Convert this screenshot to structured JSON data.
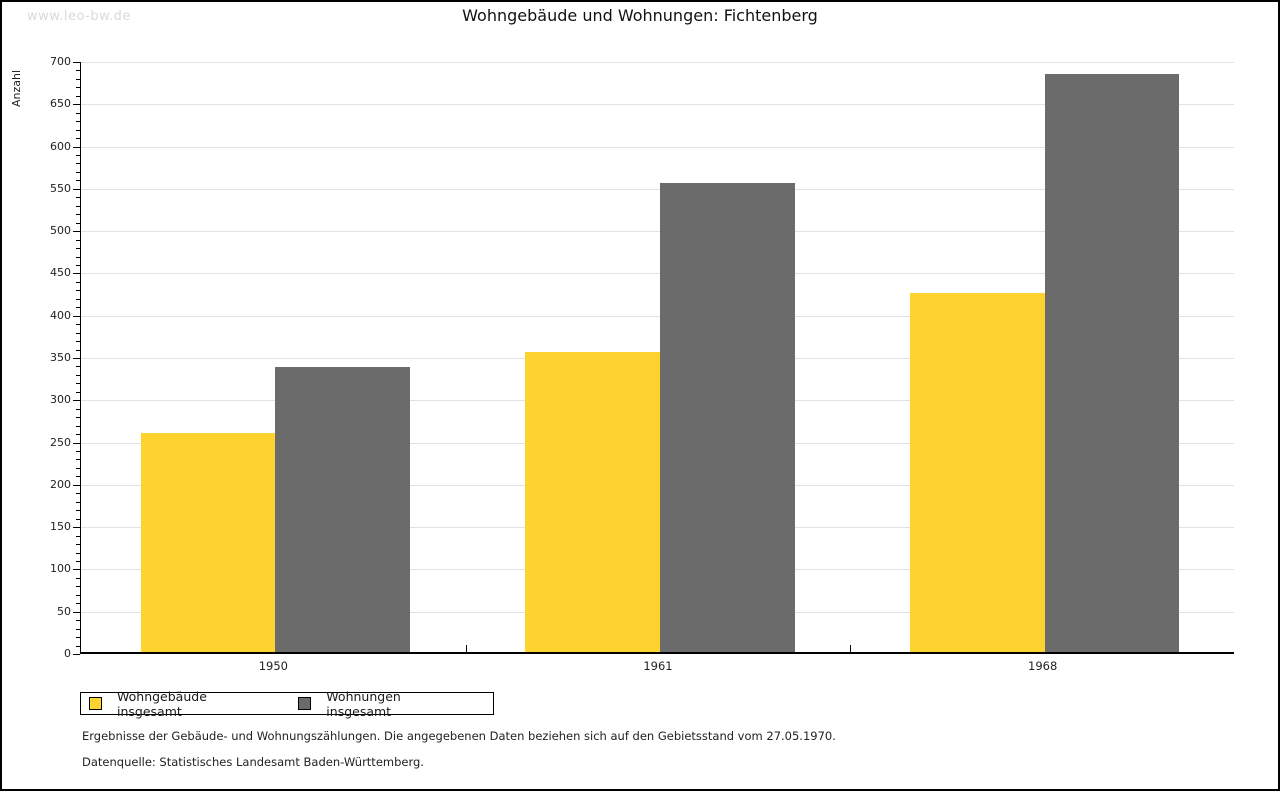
{
  "watermark": "www.leo-bw.de",
  "title": "Wohngebäude und Wohnungen: Fichtenberg",
  "footer": {
    "note": "Ergebnisse der Gebäude- und Wohnungszählungen. Die angegebenen Daten beziehen sich auf den Gebietsstand vom 27.05.1970.",
    "source": "Datenquelle: Statistisches Landesamt Baden-Württemberg."
  },
  "colors": {
    "bar_yellow": "#fcd32f",
    "bar_gray": "#6b6b6b",
    "gridline": "#e2e2e2",
    "axis": "#000000",
    "watermark": "#d9d9d9"
  },
  "chart_data": {
    "type": "bar",
    "title": "Wohngebäude und Wohnungen: Fichtenberg",
    "xlabel": "",
    "ylabel": "Anzahl",
    "categories": [
      "1950",
      "1961",
      "1968"
    ],
    "series": [
      {
        "name": "Wohngebäude insgesamt",
        "color": "#fcd32f",
        "values": [
          259,
          355,
          425
        ]
      },
      {
        "name": "Wohnungen insgesamt",
        "color": "#6b6b6b",
        "values": [
          337,
          555,
          683
        ]
      }
    ],
    "ylim": [
      0,
      700
    ],
    "ytick_major_step": 50,
    "ytick_minor_step": 10,
    "grid": true,
    "legend_position": "bottom-left"
  }
}
